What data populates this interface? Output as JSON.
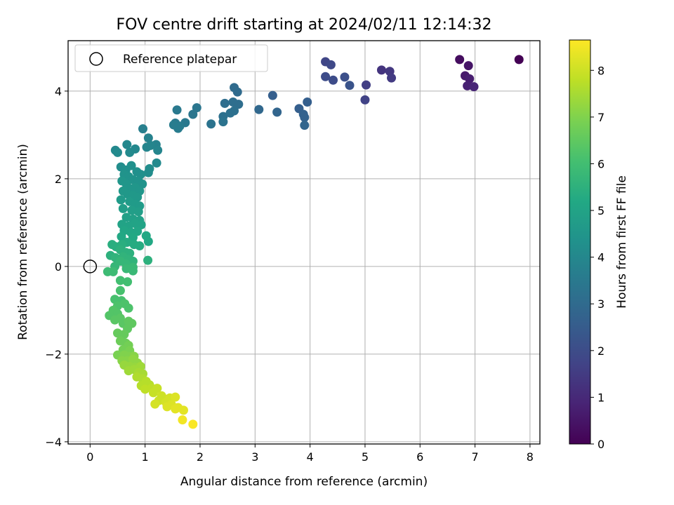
{
  "chart_data": {
    "type": "scatter",
    "title": "FOV centre drift starting at 2024/02/11 12:14:32",
    "xlabel": "Angular distance from reference (arcmin)",
    "ylabel": "Rotation from reference (arcmin)",
    "colorbar_label": "Hours from first FF file",
    "colormap": "viridis",
    "xlim": [
      -0.4,
      8.18
    ],
    "ylim": [
      -4.05,
      5.15
    ],
    "clim": [
      0,
      8.65
    ],
    "xticks": [
      "0",
      "1",
      "2",
      "3",
      "4",
      "5",
      "6",
      "7",
      "8"
    ],
    "yticks": [
      "−4",
      "−2",
      "0",
      "2",
      "4"
    ],
    "cticks": [
      "0",
      "1",
      "2",
      "3",
      "4",
      "5",
      "6",
      "7",
      "8"
    ],
    "grid": true,
    "legend": {
      "position": "top-left",
      "label": "Reference platepar"
    },
    "reference_point": {
      "x": 0,
      "y": 0
    },
    "points": [
      [
        7.8,
        4.72,
        0.0
      ],
      [
        6.72,
        4.72,
        0.3
      ],
      [
        6.88,
        4.58,
        0.5
      ],
      [
        6.82,
        4.35,
        0.6
      ],
      [
        6.9,
        4.28,
        0.7
      ],
      [
        6.86,
        4.12,
        0.8
      ],
      [
        6.98,
        4.1,
        0.9
      ],
      [
        5.3,
        4.48,
        1.3
      ],
      [
        5.45,
        4.45,
        1.4
      ],
      [
        5.48,
        4.3,
        1.5
      ],
      [
        5.02,
        4.14,
        1.6
      ],
      [
        5.0,
        3.8,
        1.7
      ],
      [
        4.28,
        4.67,
        1.8
      ],
      [
        4.38,
        4.6,
        1.9
      ],
      [
        4.28,
        4.33,
        2.0
      ],
      [
        4.42,
        4.25,
        2.0
      ],
      [
        4.63,
        4.32,
        2.1
      ],
      [
        4.72,
        4.13,
        2.2
      ],
      [
        3.32,
        3.9,
        2.6
      ],
      [
        3.8,
        3.6,
        2.6
      ],
      [
        3.88,
        3.47,
        2.7
      ],
      [
        3.9,
        3.4,
        2.7
      ],
      [
        3.95,
        3.75,
        2.6
      ],
      [
        3.9,
        3.22,
        2.8
      ],
      [
        3.4,
        3.52,
        2.8
      ],
      [
        3.07,
        3.58,
        2.9
      ],
      [
        2.62,
        4.08,
        3.0
      ],
      [
        2.68,
        3.98,
        3.0
      ],
      [
        2.6,
        3.75,
        3.1
      ],
      [
        2.7,
        3.7,
        3.1
      ],
      [
        2.45,
        3.72,
        3.1
      ],
      [
        2.62,
        3.55,
        3.2
      ],
      [
        2.55,
        3.5,
        3.2
      ],
      [
        2.42,
        3.42,
        3.2
      ],
      [
        2.42,
        3.3,
        3.3
      ],
      [
        2.2,
        3.25,
        3.3
      ],
      [
        1.94,
        3.62,
        3.4
      ],
      [
        1.87,
        3.47,
        3.4
      ],
      [
        1.73,
        3.28,
        3.5
      ],
      [
        1.58,
        3.57,
        3.5
      ],
      [
        1.55,
        3.27,
        3.5
      ],
      [
        1.6,
        3.15,
        3.6
      ],
      [
        1.63,
        3.2,
        3.6
      ],
      [
        1.52,
        3.23,
        3.6
      ],
      [
        0.96,
        3.14,
        3.7
      ],
      [
        1.06,
        2.93,
        3.8
      ],
      [
        1.2,
        2.78,
        3.8
      ],
      [
        1.23,
        2.65,
        3.9
      ],
      [
        1.03,
        2.72,
        3.9
      ],
      [
        1.1,
        2.76,
        3.9
      ],
      [
        0.67,
        2.78,
        4.0
      ],
      [
        0.82,
        2.68,
        4.0
      ],
      [
        0.46,
        2.65,
        4.0
      ],
      [
        0.5,
        2.6,
        4.1
      ],
      [
        0.72,
        2.6,
        4.1
      ],
      [
        1.21,
        2.36,
        4.1
      ],
      [
        1.08,
        2.23,
        4.2
      ],
      [
        1.06,
        2.14,
        4.2
      ],
      [
        0.56,
        2.27,
        4.2
      ],
      [
        0.65,
        2.2,
        4.3
      ],
      [
        0.75,
        2.3,
        4.3
      ],
      [
        0.85,
        2.16,
        4.3
      ],
      [
        0.92,
        2.1,
        4.3
      ],
      [
        0.62,
        2.1,
        4.4
      ],
      [
        0.7,
        2.05,
        4.4
      ],
      [
        0.78,
        1.98,
        4.4
      ],
      [
        0.88,
        1.95,
        4.4
      ],
      [
        0.95,
        1.88,
        4.4
      ],
      [
        0.58,
        1.95,
        4.5
      ],
      [
        0.66,
        1.88,
        4.5
      ],
      [
        0.72,
        1.78,
        4.5
      ],
      [
        0.82,
        1.8,
        4.5
      ],
      [
        0.9,
        1.72,
        4.5
      ],
      [
        0.6,
        1.72,
        4.6
      ],
      [
        0.68,
        1.65,
        4.6
      ],
      [
        0.78,
        1.62,
        4.6
      ],
      [
        0.86,
        1.58,
        4.6
      ],
      [
        0.56,
        1.52,
        4.7
      ],
      [
        0.72,
        1.48,
        4.7
      ],
      [
        0.82,
        1.42,
        4.7
      ],
      [
        0.9,
        1.38,
        4.7
      ],
      [
        0.6,
        1.32,
        4.8
      ],
      [
        0.76,
        1.28,
        4.8
      ],
      [
        0.88,
        1.25,
        4.8
      ],
      [
        0.66,
        1.12,
        4.9
      ],
      [
        0.78,
        1.08,
        4.9
      ],
      [
        0.9,
        1.05,
        4.9
      ],
      [
        0.58,
        0.96,
        5.0
      ],
      [
        0.7,
        0.92,
        5.0
      ],
      [
        0.82,
        0.98,
        5.0
      ],
      [
        0.93,
        0.95,
        5.0
      ],
      [
        0.62,
        0.82,
        5.1
      ],
      [
        0.74,
        0.78,
        5.1
      ],
      [
        0.86,
        0.8,
        5.1
      ],
      [
        0.57,
        0.68,
        5.2
      ],
      [
        0.78,
        0.66,
        5.2
      ],
      [
        1.02,
        0.7,
        5.2
      ],
      [
        1.06,
        0.57,
        5.2
      ],
      [
        0.67,
        0.55,
        5.3
      ],
      [
        0.8,
        0.5,
        5.3
      ],
      [
        0.9,
        0.47,
        5.3
      ],
      [
        0.58,
        0.5,
        5.4
      ],
      [
        0.4,
        0.5,
        5.4
      ],
      [
        0.47,
        0.45,
        5.4
      ],
      [
        0.55,
        0.38,
        5.5
      ],
      [
        0.65,
        0.32,
        5.5
      ],
      [
        0.72,
        0.3,
        5.5
      ],
      [
        0.37,
        0.25,
        5.5
      ],
      [
        0.46,
        0.2,
        5.6
      ],
      [
        0.6,
        0.22,
        5.6
      ],
      [
        0.7,
        0.16,
        5.6
      ],
      [
        0.78,
        0.12,
        5.6
      ],
      [
        1.05,
        0.14,
        5.5
      ],
      [
        0.55,
        0.12,
        5.7
      ],
      [
        0.65,
        0.06,
        5.7
      ],
      [
        0.45,
        0.0,
        5.7
      ],
      [
        0.78,
        -0.02,
        5.8
      ],
      [
        0.66,
        -0.05,
        5.8
      ],
      [
        0.42,
        -0.12,
        5.9
      ],
      [
        0.32,
        -0.12,
        5.9
      ],
      [
        0.78,
        -0.1,
        5.8
      ],
      [
        0.68,
        -0.35,
        6.0
      ],
      [
        0.55,
        -0.32,
        6.0
      ],
      [
        0.55,
        -0.55,
        6.1
      ],
      [
        0.45,
        -0.75,
        6.1
      ],
      [
        0.57,
        -0.78,
        6.1
      ],
      [
        0.63,
        -0.85,
        6.2
      ],
      [
        0.7,
        -0.95,
        6.2
      ],
      [
        0.5,
        -0.9,
        6.2
      ],
      [
        0.42,
        -1.0,
        6.3
      ],
      [
        0.5,
        -1.08,
        6.3
      ],
      [
        0.35,
        -1.12,
        6.3
      ],
      [
        0.45,
        -1.22,
        6.4
      ],
      [
        0.55,
        -1.18,
        6.4
      ],
      [
        0.6,
        -1.3,
        6.4
      ],
      [
        0.7,
        -1.25,
        6.5
      ],
      [
        0.76,
        -1.3,
        6.5
      ],
      [
        0.68,
        -1.42,
        6.5
      ],
      [
        0.5,
        -1.52,
        6.6
      ],
      [
        0.62,
        -1.55,
        6.6
      ],
      [
        0.55,
        -1.7,
        6.7
      ],
      [
        0.65,
        -1.75,
        6.7
      ],
      [
        0.7,
        -1.8,
        6.8
      ],
      [
        0.6,
        -1.9,
        6.8
      ],
      [
        0.72,
        -1.92,
        6.9
      ],
      [
        0.5,
        -2.02,
        6.9
      ],
      [
        0.62,
        -2.02,
        7.0
      ],
      [
        0.72,
        -2.05,
        7.0
      ],
      [
        0.8,
        -2.05,
        7.1
      ],
      [
        0.58,
        -2.15,
        7.1
      ],
      [
        0.68,
        -2.15,
        7.1
      ],
      [
        0.78,
        -2.12,
        7.2
      ],
      [
        0.86,
        -2.2,
        7.2
      ],
      [
        0.62,
        -2.25,
        7.3
      ],
      [
        0.72,
        -2.28,
        7.3
      ],
      [
        0.82,
        -2.3,
        7.3
      ],
      [
        0.92,
        -2.28,
        7.4
      ],
      [
        0.7,
        -2.38,
        7.4
      ],
      [
        0.8,
        -2.35,
        7.4
      ],
      [
        0.88,
        -2.42,
        7.5
      ],
      [
        0.96,
        -2.45,
        7.5
      ],
      [
        0.85,
        -2.52,
        7.6
      ],
      [
        0.95,
        -2.56,
        7.6
      ],
      [
        1.02,
        -2.62,
        7.7
      ],
      [
        0.93,
        -2.72,
        7.7
      ],
      [
        1.08,
        -2.7,
        7.7
      ],
      [
        1.0,
        -2.8,
        7.8
      ],
      [
        1.12,
        -2.78,
        7.8
      ],
      [
        1.22,
        -2.78,
        7.9
      ],
      [
        1.15,
        -2.88,
        7.9
      ],
      [
        1.3,
        -2.95,
        8.0
      ],
      [
        1.35,
        -3.02,
        8.0
      ],
      [
        1.25,
        -3.06,
        8.0
      ],
      [
        1.38,
        -3.1,
        8.1
      ],
      [
        1.45,
        -3.0,
        8.1
      ],
      [
        1.55,
        -2.98,
        8.2
      ],
      [
        1.48,
        -3.15,
        8.2
      ],
      [
        1.4,
        -3.2,
        8.2
      ],
      [
        1.18,
        -3.14,
        8.1
      ],
      [
        1.6,
        -3.22,
        8.3
      ],
      [
        1.7,
        -3.28,
        8.3
      ],
      [
        1.55,
        -3.25,
        8.3
      ],
      [
        1.68,
        -3.5,
        8.5
      ],
      [
        1.87,
        -3.6,
        8.6
      ]
    ]
  }
}
